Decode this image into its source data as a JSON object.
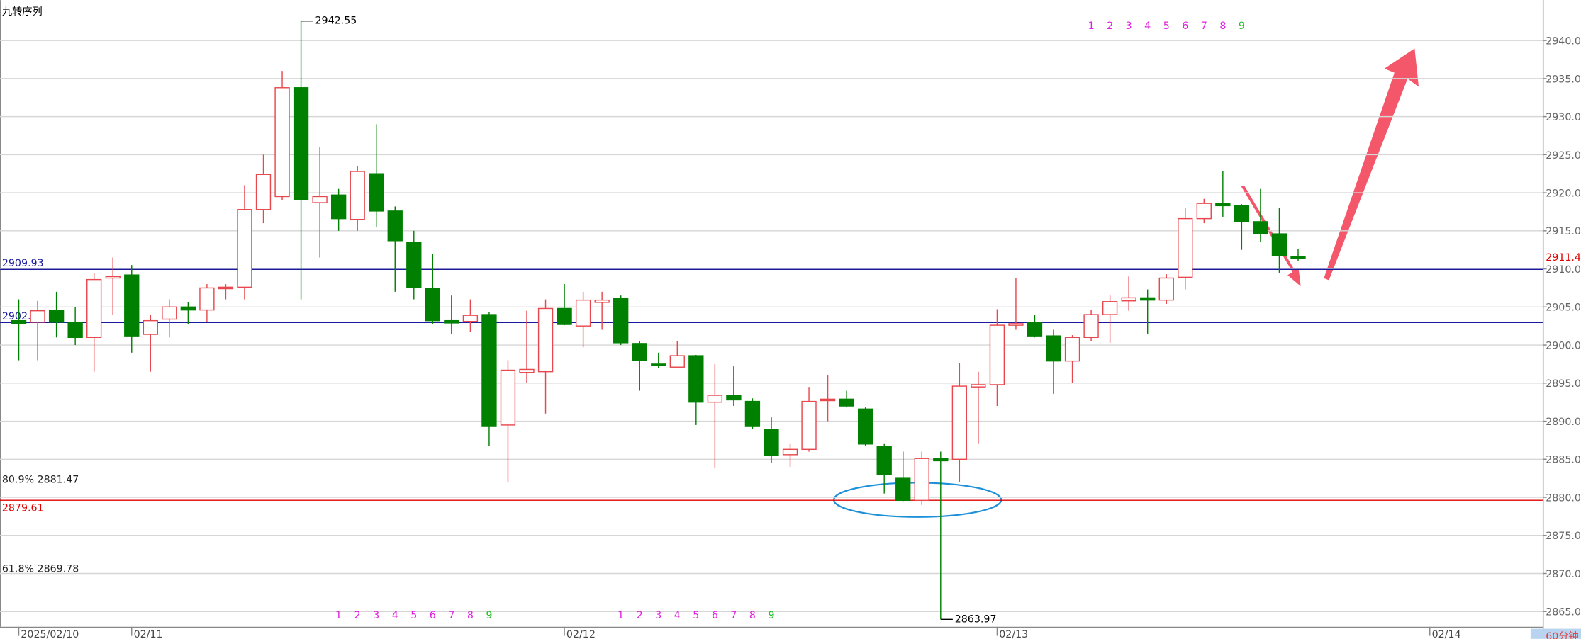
{
  "chart_data": {
    "type": "candlestick",
    "indicator": "九转序列",
    "period": "60分钟",
    "up_color": "#e8474d",
    "down_color": "#008000",
    "grid": true,
    "xlim": [
      -1,
      81
    ],
    "xticks": [
      {
        "value": 0,
        "label": "2025/02/10"
      },
      {
        "value": 6,
        "label": "02/11"
      },
      {
        "value": 29,
        "label": "02/12"
      },
      {
        "value": 52,
        "label": "02/13"
      },
      {
        "value": 75,
        "label": "02/14"
      }
    ],
    "ylim": [
      2862.6,
      2945.3
    ],
    "yticks": [
      {
        "value": 2865,
        "label": "2865.00"
      },
      {
        "value": 2870,
        "label": "2870.00"
      },
      {
        "value": 2875,
        "label": "2875.00"
      },
      {
        "value": 2880,
        "label": "2880.00"
      },
      {
        "value": 2885,
        "label": "2885.00"
      },
      {
        "value": 2890,
        "label": "2890.00"
      },
      {
        "value": 2895,
        "label": "2895.00"
      },
      {
        "value": 2900,
        "label": "2900.00"
      },
      {
        "value": 2905,
        "label": "2905.00"
      },
      {
        "value": 2910,
        "label": "2910.00"
      },
      {
        "value": 2915,
        "label": "2915.00"
      },
      {
        "value": 2920,
        "label": "2920.00"
      },
      {
        "value": 2925,
        "label": "2925.00"
      },
      {
        "value": 2930,
        "label": "2930.00"
      },
      {
        "value": 2935,
        "label": "2935.00"
      },
      {
        "value": 2940,
        "label": "2940.00"
      }
    ],
    "open": [
      2903.2,
      2903,
      2904.5,
      2903,
      2901,
      2908.8,
      2909.2,
      2901.4,
      2903.4,
      2905,
      2904.6,
      2907.4,
      2907.6,
      2917.8,
      2919.5,
      2933.8,
      2918.7,
      2919.7,
      2916.5,
      2922.5,
      2917.6,
      2913.5,
      2907.4,
      2903.2,
      2903.1,
      2904,
      2889.5,
      2896.4,
      2896.5,
      2904.8,
      2902.5,
      2905.6,
      2906.1,
      2900.2,
      2897.5,
      2897.1,
      2898.6,
      2892.5,
      2893.4,
      2892.6,
      2888.9,
      2885.6,
      2886.3,
      2892.8,
      2892.9,
      2891.6,
      2886.7,
      2882.5,
      2879.6,
      2885.1,
      2885,
      2894.5,
      2894.8,
      2902.6,
      2903,
      2901.2,
      2897.9,
      2901,
      2904,
      2905.8,
      2906.2,
      2905.9,
      2908.9,
      2916.6,
      2918.6,
      2918.3,
      2916.2,
      2914.6,
      2911.6
    ],
    "high": [
      2906,
      2905.8,
      2907,
      2905,
      2909.5,
      2911.5,
      2910.5,
      2904,
      2906,
      2905.6,
      2908,
      2908,
      2921,
      2925,
      2936,
      2942.55,
      2926,
      2920.5,
      2923.5,
      2929,
      2918.2,
      2915,
      2912,
      2906.5,
      2906,
      2904.3,
      2898,
      2904.5,
      2906,
      2908,
      2907,
      2907,
      2906.5,
      2900.5,
      2899,
      2900.5,
      2898.7,
      2897.5,
      2897.2,
      2893,
      2890.5,
      2887,
      2894.5,
      2896,
      2894,
      2891.8,
      2887,
      2886,
      2886,
      2886,
      2897.6,
      2896.5,
      2904.7,
      2908.8,
      2904,
      2902,
      2901.3,
      2904.6,
      2906.5,
      2909,
      2907.3,
      2909.3,
      2918,
      2919.2,
      2922.8,
      2918.5,
      2920.5,
      2918,
      2912.6
    ],
    "low": [
      2898,
      2898,
      2901,
      2900,
      2896.5,
      2904,
      2899,
      2896.5,
      2901,
      2902.7,
      2903,
      2906,
      2906,
      2916,
      2919,
      2906,
      2911.5,
      2915,
      2915,
      2915.5,
      2907,
      2906,
      2902.8,
      2901.4,
      2901.7,
      2886.7,
      2882,
      2895,
      2891,
      2902.6,
      2899.7,
      2902,
      2900,
      2894,
      2897,
      2897,
      2889.5,
      2883.8,
      2892,
      2889,
      2884.5,
      2884,
      2886,
      2890,
      2891.8,
      2886.8,
      2880.5,
      2879.5,
      2879,
      2863.97,
      2882,
      2887,
      2892,
      2902,
      2901,
      2893.6,
      2895,
      2900.5,
      2900.3,
      2904.5,
      2901.5,
      2905.4,
      2907.3,
      2916,
      2916.8,
      2912.5,
      2913.5,
      2909.5,
      2911
    ],
    "close": [
      2902.8,
      2904.5,
      2903,
      2901,
      2908.6,
      2909,
      2901.2,
      2903.2,
      2905,
      2904.6,
      2907.5,
      2907.6,
      2917.8,
      2922.4,
      2933.8,
      2919.1,
      2919.5,
      2916.6,
      2922.8,
      2917.6,
      2913.7,
      2907.6,
      2903.2,
      2902.9,
      2903.9,
      2889.3,
      2896.7,
      2896.8,
      2904.8,
      2902.7,
      2905.9,
      2905.9,
      2900.3,
      2898,
      2897.3,
      2898.6,
      2892.5,
      2893.4,
      2892.8,
      2889.3,
      2885.5,
      2886.3,
      2892.6,
      2892.9,
      2892,
      2887,
      2883,
      2879.6,
      2885.1,
      2884.8,
      2894.6,
      2894.8,
      2902.6,
      2902.8,
      2901.2,
      2897.9,
      2901,
      2904,
      2905.7,
      2906.2,
      2905.9,
      2908.8,
      2916.6,
      2918.6,
      2918.3,
      2916.2,
      2914.6,
      2911.7,
      2911.47
    ],
    "levels": [
      {
        "value": 2909.93,
        "color": "#1a1aa0",
        "line": true
      },
      {
        "value": 2902.95,
        "color": "#1a1aa0",
        "line": true
      },
      {
        "value": 2881.47,
        "label": "80.9% 2881.47",
        "color": "#222222",
        "line": false
      },
      {
        "value": 2879.61,
        "color": "#e00000",
        "line": true
      },
      {
        "value": 2869.78,
        "label": "61.8% 2869.78",
        "color": "#222222",
        "line": false
      }
    ],
    "sequences": [
      {
        "position": "top",
        "x": [
          57,
          58,
          59,
          60,
          61,
          62,
          63,
          64,
          65
        ],
        "labels": [
          "1",
          "2",
          "3",
          "4",
          "5",
          "6",
          "7",
          "8",
          "9"
        ]
      },
      {
        "position": "bottom",
        "x": [
          17,
          18,
          19,
          20,
          21,
          22,
          23,
          24,
          25
        ],
        "labels": [
          "1",
          "2",
          "3",
          "4",
          "5",
          "6",
          "7",
          "8",
          "9"
        ]
      },
      {
        "position": "bottom",
        "x": [
          32,
          33,
          34,
          35,
          36,
          37,
          38,
          39,
          40
        ],
        "labels": [
          "1",
          "2",
          "3",
          "4",
          "5",
          "6",
          "7",
          "8",
          "9"
        ]
      }
    ]
  }
}
